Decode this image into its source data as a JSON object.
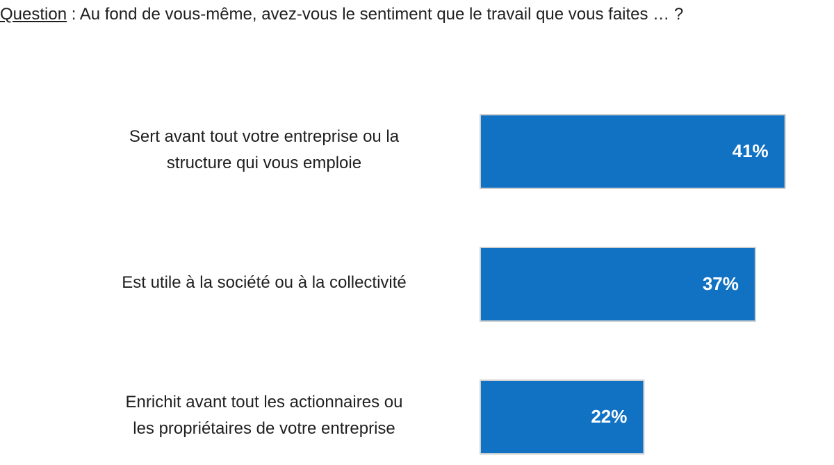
{
  "question": {
    "label": "Question",
    "text": " : Au fond de vous-même, avez-vous le sentiment que le travail que vous faites … ?"
  },
  "colors": {
    "bar": "#1172c4",
    "bar_outline": "#d0d0d0"
  },
  "chart_data": {
    "type": "bar",
    "orientation": "horizontal",
    "title": "",
    "xlabel": "",
    "ylabel": "",
    "grid": false,
    "xlim": [
      0,
      100
    ],
    "categories": [
      [
        "Sert avant tout votre entreprise ou la",
        "structure qui vous emploie"
      ],
      [
        "Est utile à la société ou à la collectivité"
      ],
      [
        "Enrichit avant tout les actionnaires ou",
        "les propriétaires de votre entreprise"
      ]
    ],
    "values": [
      41,
      37,
      22
    ],
    "value_labels": [
      "41%",
      "37%",
      "22%"
    ]
  }
}
